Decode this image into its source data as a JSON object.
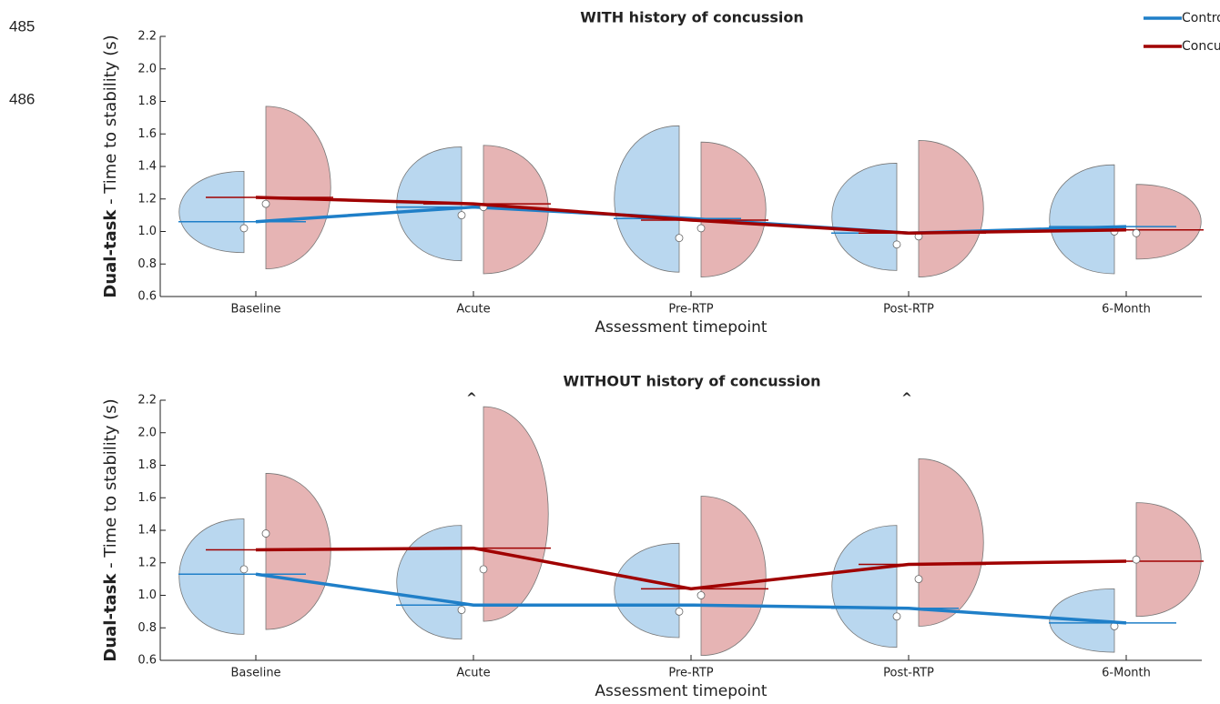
{
  "line_numbers": [
    "485",
    "486"
  ],
  "chart_data": [
    {
      "type": "violin",
      "title": "WITH history of concussion",
      "xlabel": "Assessment timepoint",
      "ylabel_emphasis": "Dual-task",
      "ylabel": "- Time to stability (s)",
      "categories": [
        "Baseline",
        "Acute",
        "Pre-RTP",
        "Post-RTP",
        "6-Month"
      ],
      "ylim": [
        0.6,
        2.2
      ],
      "yticks": [
        0.6,
        0.8,
        {
          "value": 1.0,
          "label": "1.0"
        },
        1.2,
        1.4,
        1.6,
        1.8,
        {
          "value": 2.0,
          "label": "2.0"
        },
        2.2
      ],
      "legend": "upper right",
      "series": [
        {
          "name": "Control",
          "color": "#1f7fc8",
          "fill": "#b9d7ef",
          "values": [
            1.06,
            1.15,
            1.08,
            0.99,
            1.03
          ],
          "medians": [
            1.02,
            1.1,
            0.96,
            0.92,
            1.0
          ],
          "violin_min": [
            0.87,
            0.82,
            0.75,
            0.76,
            0.74
          ],
          "violin_max": [
            1.37,
            1.52,
            1.65,
            1.42,
            1.41
          ]
        },
        {
          "name": "Concussed",
          "color": "#a00000",
          "fill": "#e6b4b4",
          "values": [
            1.21,
            1.17,
            1.07,
            0.99,
            1.01
          ],
          "medians": [
            1.17,
            1.15,
            1.02,
            0.97,
            0.99
          ],
          "violin_min": [
            0.77,
            0.74,
            0.72,
            0.72,
            0.83
          ],
          "violin_max": [
            1.77,
            1.53,
            1.55,
            1.56,
            1.29
          ]
        }
      ]
    },
    {
      "type": "violin",
      "title": "WITHOUT history of concussion",
      "xlabel": "Assessment timepoint",
      "ylabel_emphasis": "Dual-task",
      "ylabel": "- Time to stability (s)",
      "categories": [
        "Baseline",
        "Acute",
        "Pre-RTP",
        "Post-RTP",
        "6-Month"
      ],
      "ylim": [
        0.6,
        2.2
      ],
      "yticks": [
        0.6,
        0.8,
        {
          "value": 1.0,
          "label": "1.0"
        },
        1.2,
        1.4,
        1.6,
        1.8,
        {
          "value": 2.0,
          "label": "2.0"
        },
        2.2
      ],
      "annotations": [
        null,
        "^",
        null,
        "^",
        null
      ],
      "series": [
        {
          "name": "Control",
          "color": "#1f7fc8",
          "fill": "#b9d7ef",
          "values": [
            1.13,
            0.94,
            0.94,
            0.92,
            0.83
          ],
          "medians": [
            1.16,
            0.91,
            0.9,
            0.87,
            0.81
          ],
          "violin_min": [
            0.76,
            0.73,
            0.74,
            0.68,
            0.65
          ],
          "violin_max": [
            1.47,
            1.43,
            1.32,
            1.43,
            1.04
          ]
        },
        {
          "name": "Concussed",
          "color": "#a00000",
          "fill": "#e6b4b4",
          "values": [
            1.28,
            1.29,
            1.04,
            1.19,
            1.21
          ],
          "medians": [
            1.38,
            1.16,
            1.0,
            1.1,
            1.22
          ],
          "violin_min": [
            0.79,
            0.84,
            0.63,
            0.81,
            0.87
          ],
          "violin_max": [
            1.75,
            2.16,
            1.61,
            1.84,
            1.57
          ]
        }
      ]
    }
  ]
}
